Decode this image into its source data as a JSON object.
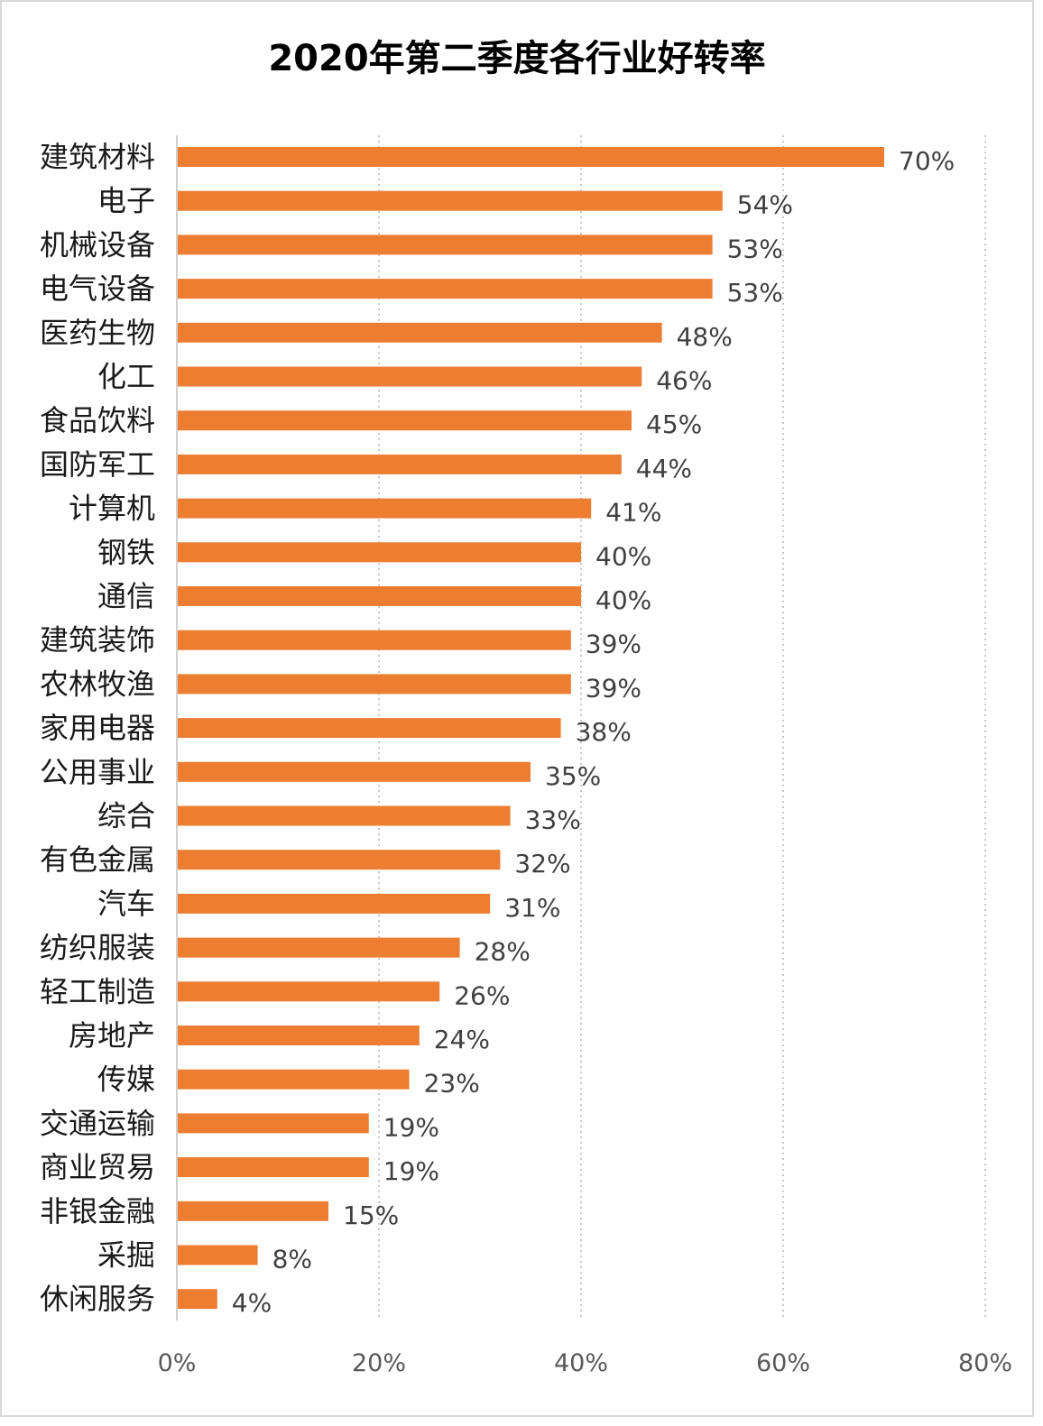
{
  "chart_data": {
    "type": "bar",
    "orientation": "horizontal",
    "title": "2020年第二季度各行业好转率",
    "categories": [
      "建筑材料",
      "电子",
      "机械设备",
      "电气设备",
      "医药生物",
      "化工",
      "食品饮料",
      "国防军工",
      "计算机",
      "钢铁",
      "通信",
      "建筑装饰",
      "农林牧渔",
      "家用电器",
      "公用事业",
      "综合",
      "有色金属",
      "汽车",
      "纺织服装",
      "轻工制造",
      "房地产",
      "传媒",
      "交通运输",
      "商业贸易",
      "非银金融",
      "采掘",
      "休闲服务"
    ],
    "values": [
      0.7,
      0.54,
      0.53,
      0.53,
      0.48,
      0.46,
      0.45,
      0.44,
      0.41,
      0.4,
      0.4,
      0.39,
      0.39,
      0.38,
      0.35,
      0.33,
      0.32,
      0.31,
      0.28,
      0.26,
      0.24,
      0.23,
      0.19,
      0.19,
      0.15,
      0.08,
      0.04
    ],
    "value_labels": [
      "70%",
      "54%",
      "53%",
      "53%",
      "48%",
      "46%",
      "45%",
      "44%",
      "41%",
      "40%",
      "40%",
      "39%",
      "39%",
      "38%",
      "35%",
      "33%",
      "32%",
      "31%",
      "28%",
      "26%",
      "24%",
      "23%",
      "19%",
      "19%",
      "15%",
      "8%",
      "4%"
    ],
    "xlim": [
      0,
      0.8
    ],
    "xticks": [
      0,
      0.2,
      0.4,
      0.6,
      0.8
    ],
    "xtick_labels": [
      "0%",
      "20%",
      "40%",
      "60%",
      "80%"
    ],
    "grid": "vertical dotted",
    "bar_color": "#ED7D31",
    "xlabel": "",
    "ylabel": ""
  }
}
